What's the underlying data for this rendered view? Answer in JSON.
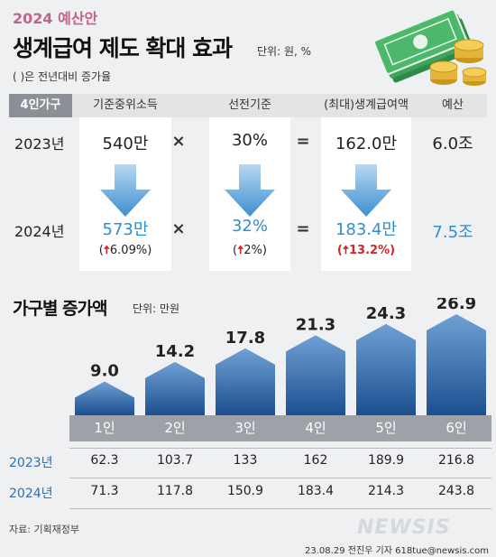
{
  "header": {
    "year_label": "2024 예산안",
    "title": "생계급여 제도 확대 효과",
    "unit": "단위: 원, %",
    "note": "( )은 전년대비 증가율"
  },
  "table": {
    "tag": "4인가구",
    "columns": [
      "기준중위소득",
      "선전기준",
      "(최대)생계급여액",
      "예산"
    ],
    "rows": [
      {
        "year": "2023년",
        "values": [
          "540만",
          "30%",
          "162.0만",
          "6.0조"
        ]
      },
      {
        "year": "2024년",
        "values": [
          "573만",
          "32%",
          "183.4만",
          "7.5조"
        ],
        "changes": [
          "6.09%",
          "2%",
          "13.2%"
        ]
      }
    ],
    "operators": [
      "×",
      "="
    ],
    "up_arrow": "🠅"
  },
  "section2": {
    "title": "가구별 증가액",
    "unit": "단위: 만원"
  },
  "chart_data": {
    "type": "bar",
    "categories": [
      "1인",
      "2인",
      "3인",
      "4인",
      "5인",
      "6인"
    ],
    "values": [
      9.0,
      14.2,
      17.8,
      21.3,
      24.3,
      26.9
    ],
    "value_labels": [
      "9.0",
      "14.2",
      "17.8",
      "21.3",
      "24.3",
      "26.9"
    ],
    "ylim": [
      0,
      26.9
    ],
    "colors": {
      "bar_top": "#6fa0d4",
      "bar_bottom": "#1c4f90"
    },
    "table_rows": [
      {
        "year": "2023년",
        "values": [
          "62.3",
          "103.7",
          "133",
          "162",
          "189.9",
          "216.8"
        ]
      },
      {
        "year": "2024년",
        "values": [
          "71.3",
          "117.8",
          "150.9",
          "183.4",
          "214.3",
          "243.8"
        ]
      }
    ]
  },
  "footer": {
    "source": "자료: 기획재정부",
    "logo": "NEWSIS",
    "credit": "23.08.29 전진우 기자 618tue@newsis.com"
  },
  "colors": {
    "accent_blue": "#2d8fd0",
    "accent_red": "#d2262b",
    "title_pink": "#c0648a"
  }
}
